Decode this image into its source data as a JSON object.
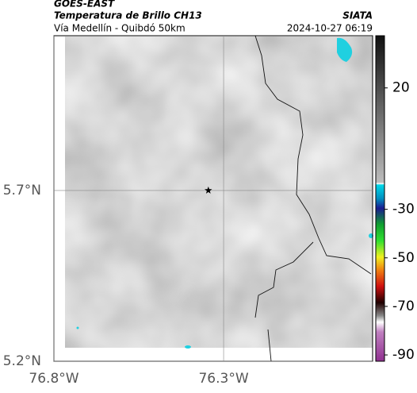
{
  "header": {
    "source": "GOES-EAST",
    "title": "Temperatura de Brillo CH13",
    "subtitle": "Vía Medellín - Quibdó 50km",
    "brand": "SIATA",
    "timestamp": "2024-10-27 06:19"
  },
  "map": {
    "lonlim": [
      -76.8,
      -75.861
    ],
    "latlim": [
      5.2,
      6.153
    ],
    "lonticks": [
      {
        "value": -76.8,
        "label": "76.8°W"
      },
      {
        "value": -76.3,
        "label": "76.3°W"
      }
    ],
    "latticks": [
      {
        "value": 5.2,
        "label": "5.2°N"
      },
      {
        "value": 5.7,
        "label": "5.7°N"
      }
    ],
    "marker": {
      "lon": -76.345,
      "lat": 5.7
    }
  },
  "colorbar": {
    "lim": [
      41.5,
      -92.6
    ],
    "ticks": [
      20,
      -30,
      -50,
      -70,
      -90
    ]
  }
}
